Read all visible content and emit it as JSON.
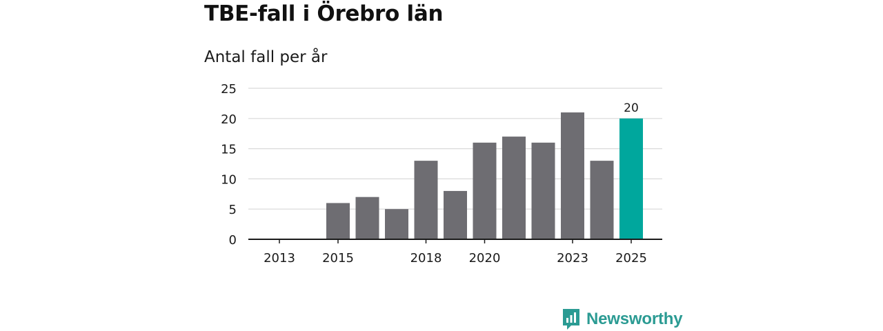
{
  "header": {
    "title": "TBE-fall i Örebro län",
    "subtitle": "Antal fall per år"
  },
  "brand": {
    "name": "Newsworthy",
    "color": "#2b9b93"
  },
  "colors": {
    "bar": "#6e6d72",
    "highlight": "#00a79d",
    "grid": "#d9d9d9",
    "axis": "#1a1a1a"
  },
  "chart_data": {
    "type": "bar",
    "title": "TBE-fall i Örebro län",
    "subtitle": "Antal fall per år",
    "xlabel": "",
    "ylabel": "",
    "categories": [
      "2013",
      "2014",
      "2015",
      "2016",
      "2017",
      "2018",
      "2019",
      "2020",
      "2021",
      "2022",
      "2023",
      "2024",
      "2025"
    ],
    "values": [
      0,
      0,
      6,
      7,
      5,
      13,
      8,
      16,
      17,
      16,
      21,
      13,
      20
    ],
    "x_tick_labels": [
      "2013",
      "2015",
      "2018",
      "2020",
      "2023",
      "2025"
    ],
    "y_ticks": [
      0,
      5,
      10,
      15,
      20,
      25
    ],
    "ylim": [
      0,
      25
    ],
    "highlight_index": 12,
    "data_labels": [
      {
        "index": 12,
        "text": "20"
      }
    ],
    "grid": true
  }
}
